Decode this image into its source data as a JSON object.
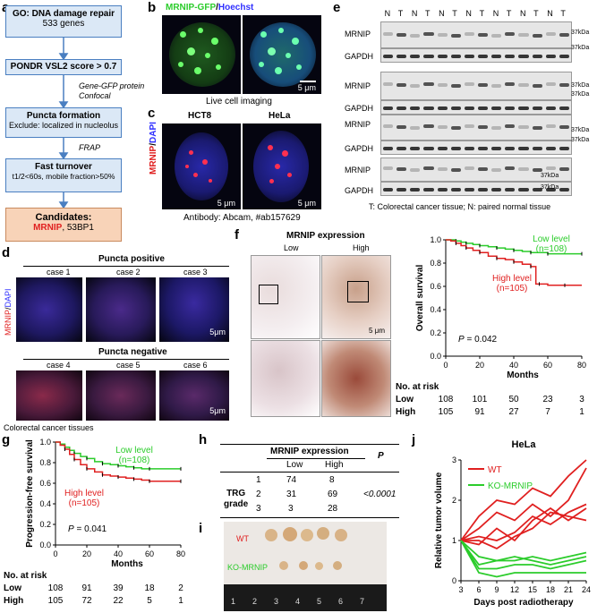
{
  "panel_a": {
    "label": "a",
    "box1_title": "GO: DNA damage repair",
    "box1_sub": "533 genes",
    "box2": "PONDR VSL2 score > 0.7",
    "arrow2_note1": "Gene-GFP protein",
    "arrow2_note2": "Confocal",
    "box3_title": "Puncta formation",
    "box3_sub": "Exclude: localized in nucleolus",
    "arrow3_note": "FRAP",
    "box4_title": "Fast turnover",
    "box4_sub": "t1/2<60s, mobile fraction>50%",
    "box5_title": "Candidates:",
    "box5_gene1": "MRNIP",
    "box5_gene2": ", 53BP1"
  },
  "panel_b": {
    "label": "b",
    "title_green": "MRNIP-GFP",
    "title_sep": "/",
    "title_blue": "Hoechst",
    "scale": "5 μm",
    "caption": "Live cell imaging"
  },
  "panel_c": {
    "label": "c",
    "cell1": "HCT8",
    "cell2": "HeLa",
    "side_red": "MRNIP",
    "side_sep": "/",
    "side_blue": "DAPI",
    "scale": "5 μm",
    "caption": "Antibody: Abcam, #ab157629"
  },
  "panel_d": {
    "label": "d",
    "group1": "Puncta positive",
    "group2": "Puncta negative",
    "cases": [
      "case 1",
      "case 2",
      "case 3",
      "case 4",
      "case 5",
      "case 6"
    ],
    "side_red": "MRNIP",
    "side_sep": "/",
    "side_blue": "DAPI",
    "scale": "5μm",
    "caption": "Colorectal cancer tissues"
  },
  "panel_e": {
    "label": "e",
    "lanes": [
      "N",
      "T",
      "N",
      "T",
      "N",
      "T",
      "N",
      "T",
      "N",
      "T",
      "N",
      "T",
      "N",
      "T"
    ],
    "row_mrnip": "MRNIP",
    "row_gapdh": "GAPDH",
    "marker": "37kDa",
    "caption": "T: Colorectal cancer tissue; N: paired normal tissue"
  },
  "panel_f": {
    "label": "f",
    "title": "MRNIP expression",
    "low": "Low",
    "high": "High",
    "scale": "5 μm",
    "km": {
      "ylabel": "Overall survival",
      "xlabel": "Months",
      "pval_prefix": "P",
      "pval_suffix": " = 0.042",
      "yticks": [
        "0.0",
        "0.2",
        "0.4",
        "0.6",
        "0.8",
        "1.0"
      ],
      "xticks": [
        "0",
        "20",
        "40",
        "60",
        "80"
      ],
      "low_label1": "Low level",
      "low_label2": "(n=108)",
      "high_label1": "High level",
      "high_label2": "(n=105)",
      "risk_title": "No. at risk",
      "risk_low_name": "Low",
      "risk_low": [
        "108",
        "101",
        "50",
        "23",
        "3"
      ],
      "risk_high_name": "High",
      "risk_high": [
        "105",
        "91",
        "27",
        "7",
        "1"
      ]
    }
  },
  "panel_g": {
    "label": "g",
    "km": {
      "ylabel": "Progression-free survival",
      "xlabel": "Months",
      "pval_prefix": "P",
      "pval_suffix": " = 0.041",
      "yticks": [
        "0.0",
        "0.2",
        "0.4",
        "0.6",
        "0.8",
        "1.0"
      ],
      "xticks": [
        "0",
        "20",
        "40",
        "60",
        "80"
      ],
      "low_label1": "Low level",
      "low_label2": "(n=108)",
      "high_label1": "High level",
      "high_label2": "(n=105)",
      "risk_title": "No. at risk",
      "risk_low_name": "Low",
      "risk_low": [
        "108",
        "91",
        "39",
        "18",
        "2"
      ],
      "risk_high_name": "High",
      "risk_high": [
        "105",
        "72",
        "22",
        "5",
        "1"
      ]
    }
  },
  "panel_h": {
    "label": "h",
    "header": "MRNIP expression",
    "p_header": "P",
    "col_low": "Low",
    "col_high": "High",
    "row_group1": "TRG",
    "row_group2": "grade",
    "rows": [
      {
        "grade": "1",
        "low": "74",
        "high": "8"
      },
      {
        "grade": "2",
        "low": "31",
        "high": "69"
      },
      {
        "grade": "3",
        "low": "3",
        "high": "28"
      }
    ],
    "pvalue": "<0.0001"
  },
  "panel_i": {
    "label": "i",
    "wt": "WT",
    "ko": "KO-MRNIP",
    "ruler": [
      "1",
      "2",
      "3",
      "4",
      "5",
      "6",
      "7"
    ]
  },
  "panel_j": {
    "label": "j",
    "title": "HeLa",
    "ylabel": "Relative tumor volume",
    "xlabel": "Days post radiotherapy",
    "legend_wt": "WT",
    "legend_ko": "KO-MRNIP",
    "xticks": [
      "3",
      "6",
      "9",
      "12",
      "15",
      "18",
      "21",
      "24"
    ],
    "yticks": [
      "0",
      "1",
      "2",
      "3"
    ]
  },
  "colors": {
    "blue_box": "#dbe8f6",
    "blue_border": "#4a7fc1",
    "cand_box": "#f8d3b8",
    "red": "#e02020",
    "green": "#2bcc2b"
  },
  "chart_data": [
    {
      "type": "line",
      "id": "overall_survival",
      "xlabel": "Months",
      "ylabel": "Overall survival",
      "xlim": [
        0,
        80
      ],
      "ylim": [
        0,
        1.0
      ],
      "series": [
        {
          "name": "Low level (n=108)",
          "x": [
            0,
            3,
            6,
            9,
            12,
            16,
            20,
            25,
            30,
            35,
            40,
            45,
            50,
            55,
            60,
            70,
            80
          ],
          "y": [
            1.0,
            1.0,
            0.99,
            0.98,
            0.97,
            0.96,
            0.95,
            0.94,
            0.93,
            0.92,
            0.91,
            0.9,
            0.89,
            0.89,
            0.88,
            0.88,
            0.88
          ]
        },
        {
          "name": "High level (n=105)",
          "x": [
            0,
            3,
            6,
            9,
            12,
            16,
            20,
            25,
            30,
            35,
            40,
            45,
            50,
            53,
            55,
            60,
            70,
            80
          ],
          "y": [
            1.0,
            0.99,
            0.97,
            0.95,
            0.93,
            0.91,
            0.89,
            0.86,
            0.84,
            0.83,
            0.81,
            0.79,
            0.77,
            0.62,
            0.62,
            0.61,
            0.61,
            0.61
          ]
        }
      ]
    },
    {
      "type": "line",
      "id": "progression_free_survival",
      "xlabel": "Months",
      "ylabel": "Progression-free survival",
      "xlim": [
        0,
        80
      ],
      "ylim": [
        0,
        1.0
      ],
      "series": [
        {
          "name": "Low level (n=108)",
          "x": [
            0,
            3,
            6,
            9,
            12,
            16,
            20,
            25,
            30,
            35,
            40,
            45,
            50,
            55,
            60,
            70,
            80
          ],
          "y": [
            1.0,
            0.98,
            0.95,
            0.92,
            0.89,
            0.86,
            0.84,
            0.81,
            0.79,
            0.78,
            0.77,
            0.76,
            0.75,
            0.74,
            0.74,
            0.74,
            0.74
          ]
        },
        {
          "name": "High level (n=105)",
          "x": [
            0,
            3,
            6,
            9,
            12,
            16,
            20,
            25,
            30,
            35,
            40,
            45,
            50,
            55,
            60,
            70,
            80
          ],
          "y": [
            1.0,
            0.97,
            0.93,
            0.88,
            0.83,
            0.78,
            0.74,
            0.71,
            0.68,
            0.67,
            0.66,
            0.65,
            0.64,
            0.63,
            0.62,
            0.62,
            0.62
          ]
        }
      ]
    },
    {
      "type": "line",
      "id": "relative_tumor_volume",
      "title": "HeLa",
      "xlabel": "Days post radiotherapy",
      "ylabel": "Relative tumor volume",
      "x": [
        3,
        6,
        9,
        12,
        15,
        18,
        21,
        24
      ],
      "ylim": [
        0,
        3
      ],
      "series": [
        {
          "name": "WT",
          "y": [
            1.0,
            1.6,
            2.0,
            1.9,
            2.3,
            2.1,
            2.6,
            3.0
          ]
        },
        {
          "name": "WT",
          "y": [
            1.0,
            1.3,
            1.7,
            1.5,
            1.9,
            1.6,
            2.0,
            2.8
          ]
        },
        {
          "name": "WT",
          "y": [
            1.0,
            1.1,
            1.0,
            1.2,
            1.6,
            1.4,
            1.7,
            1.9
          ]
        },
        {
          "name": "WT",
          "y": [
            1.0,
            0.9,
            1.3,
            1.0,
            1.5,
            1.8,
            1.5,
            1.8
          ]
        },
        {
          "name": "WT",
          "y": [
            1.0,
            1.0,
            0.8,
            1.1,
            1.3,
            1.7,
            1.6,
            1.5
          ]
        },
        {
          "name": "KO-MRNIP",
          "y": [
            1.0,
            0.6,
            0.5,
            0.5,
            0.6,
            0.5,
            0.6,
            0.7
          ]
        },
        {
          "name": "KO-MRNIP",
          "y": [
            1.0,
            0.4,
            0.5,
            0.6,
            0.5,
            0.4,
            0.5,
            0.6
          ]
        },
        {
          "name": "KO-MRNIP",
          "y": [
            1.0,
            0.3,
            0.3,
            0.4,
            0.4,
            0.3,
            0.4,
            0.5
          ]
        },
        {
          "name": "KO-MRNIP",
          "y": [
            1.0,
            0.2,
            0.1,
            0.2,
            0.2,
            0.2,
            0.2,
            0.2
          ]
        }
      ]
    }
  ]
}
